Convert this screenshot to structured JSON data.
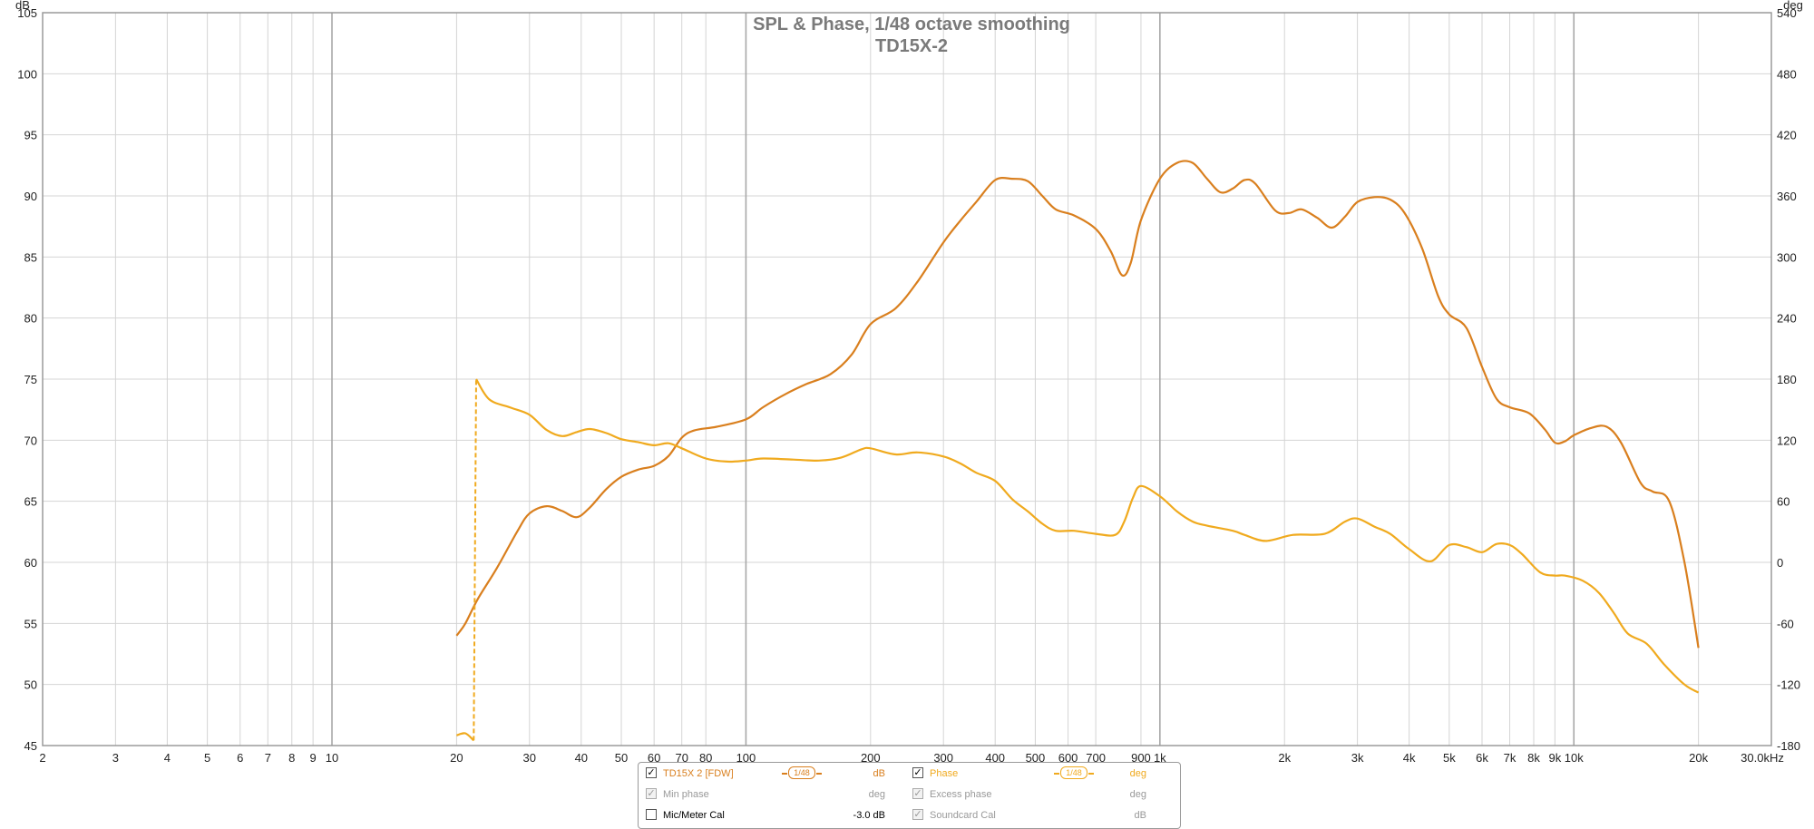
{
  "chart_data": {
    "type": "line",
    "title": "SPL & Phase, 1/48 octave smoothing",
    "subtitle": "TD15X-2",
    "x_scale": "log",
    "xlim": [
      2,
      30000
    ],
    "xunit_label": "30.0kHz",
    "left_axis": {
      "unit": "dB",
      "ylim": [
        45,
        105
      ],
      "ticks": [
        "45",
        "50",
        "55",
        "60",
        "65",
        "70",
        "75",
        "80",
        "85",
        "90",
        "95",
        "100",
        "105"
      ]
    },
    "right_axis": {
      "unit": "deg",
      "ylim": [
        -180,
        540
      ],
      "ticks": [
        "-180",
        "-120",
        "-60",
        "0",
        "60",
        "120",
        "180",
        "240",
        "300",
        "360",
        "420",
        "480",
        "540"
      ]
    },
    "x_ticks": [
      {
        "v": 2,
        "label": "2"
      },
      {
        "v": 3,
        "label": "3"
      },
      {
        "v": 4,
        "label": "4"
      },
      {
        "v": 5,
        "label": "5"
      },
      {
        "v": 6,
        "label": "6"
      },
      {
        "v": 7,
        "label": "7"
      },
      {
        "v": 8,
        "label": "8"
      },
      {
        "v": 9,
        "label": "9"
      },
      {
        "v": 10,
        "label": "10"
      },
      {
        "v": 20,
        "label": "20"
      },
      {
        "v": 30,
        "label": "30"
      },
      {
        "v": 40,
        "label": "40"
      },
      {
        "v": 50,
        "label": "50"
      },
      {
        "v": 60,
        "label": "60"
      },
      {
        "v": 70,
        "label": "70"
      },
      {
        "v": 80,
        "label": "80"
      },
      {
        "v": 100,
        "label": "100"
      },
      {
        "v": 200,
        "label": "200"
      },
      {
        "v": 300,
        "label": "300"
      },
      {
        "v": 400,
        "label": "400"
      },
      {
        "v": 500,
        "label": "500"
      },
      {
        "v": 600,
        "label": "600"
      },
      {
        "v": 700,
        "label": "700"
      },
      {
        "v": 900,
        "label": "900"
      },
      {
        "v": 1000,
        "label": "1k"
      },
      {
        "v": 2000,
        "label": "2k"
      },
      {
        "v": 3000,
        "label": "3k"
      },
      {
        "v": 4000,
        "label": "4k"
      },
      {
        "v": 5000,
        "label": "5k"
      },
      {
        "v": 6000,
        "label": "6k"
      },
      {
        "v": 7000,
        "label": "7k"
      },
      {
        "v": 8000,
        "label": "8k"
      },
      {
        "v": 9000,
        "label": "9k"
      },
      {
        "v": 10000,
        "label": "10k"
      },
      {
        "v": 20000,
        "label": "20k"
      }
    ],
    "grid": true,
    "series": [
      {
        "name": "TD15X 2 [FDW]",
        "axis": "left",
        "unit": "dB",
        "color": "#d97f1e",
        "points": [
          [
            20,
            54
          ],
          [
            21,
            55
          ],
          [
            22.5,
            57
          ],
          [
            25,
            59.5
          ],
          [
            28,
            62.5
          ],
          [
            30,
            64
          ],
          [
            33,
            64.6
          ],
          [
            36,
            64.2
          ],
          [
            39,
            63.7
          ],
          [
            42,
            64.5
          ],
          [
            46,
            66
          ],
          [
            50,
            67
          ],
          [
            55,
            67.6
          ],
          [
            60,
            67.9
          ],
          [
            65,
            68.7
          ],
          [
            70,
            70.2
          ],
          [
            75,
            70.8
          ],
          [
            85,
            71.1
          ],
          [
            100,
            71.7
          ],
          [
            110,
            72.7
          ],
          [
            125,
            73.8
          ],
          [
            140,
            74.6
          ],
          [
            160,
            75.4
          ],
          [
            180,
            77
          ],
          [
            200,
            79.5
          ],
          [
            230,
            80.8
          ],
          [
            260,
            83
          ],
          [
            300,
            86.2
          ],
          [
            330,
            88
          ],
          [
            360,
            89.5
          ],
          [
            400,
            91.3
          ],
          [
            440,
            91.4
          ],
          [
            480,
            91.2
          ],
          [
            520,
            90
          ],
          [
            560,
            88.9
          ],
          [
            620,
            88.4
          ],
          [
            700,
            87.3
          ],
          [
            760,
            85.5
          ],
          [
            810,
            83.5
          ],
          [
            850,
            84.5
          ],
          [
            900,
            88
          ],
          [
            1000,
            91.4
          ],
          [
            1100,
            92.7
          ],
          [
            1200,
            92.7
          ],
          [
            1300,
            91.4
          ],
          [
            1400,
            90.3
          ],
          [
            1500,
            90.6
          ],
          [
            1600,
            91.3
          ],
          [
            1700,
            91
          ],
          [
            1900,
            88.8
          ],
          [
            2050,
            88.6
          ],
          [
            2200,
            88.9
          ],
          [
            2400,
            88.2
          ],
          [
            2600,
            87.4
          ],
          [
            2800,
            88.3
          ],
          [
            3000,
            89.5
          ],
          [
            3300,
            89.9
          ],
          [
            3600,
            89.7
          ],
          [
            3900,
            88.6
          ],
          [
            4300,
            85.7
          ],
          [
            4700,
            81.8
          ],
          [
            5000,
            80.3
          ],
          [
            5500,
            79.2
          ],
          [
            6000,
            76
          ],
          [
            6500,
            73.4
          ],
          [
            7000,
            72.7
          ],
          [
            7800,
            72.2
          ],
          [
            8500,
            70.9
          ],
          [
            9000,
            69.8
          ],
          [
            9500,
            69.9
          ],
          [
            10000,
            70.4
          ],
          [
            11000,
            71
          ],
          [
            12000,
            71.1
          ],
          [
            13000,
            69.8
          ],
          [
            14500,
            66.5
          ],
          [
            15500,
            65.8
          ],
          [
            17000,
            65
          ],
          [
            18500,
            60
          ],
          [
            20000,
            53
          ]
        ]
      },
      {
        "name": "Phase",
        "axis": "right",
        "unit": "deg",
        "color": "#f0aa1e",
        "points": [
          [
            20,
            -170
          ],
          [
            21,
            -168
          ],
          [
            22,
            -175
          ],
          [
            22.3,
            180
          ],
          [
            24,
            160
          ],
          [
            27,
            152
          ],
          [
            30,
            145
          ],
          [
            33,
            130
          ],
          [
            36,
            124
          ],
          [
            39,
            128
          ],
          [
            42,
            131
          ],
          [
            46,
            127
          ],
          [
            50,
            121
          ],
          [
            55,
            118
          ],
          [
            60,
            115
          ],
          [
            65,
            117
          ],
          [
            70,
            112
          ],
          [
            80,
            102
          ],
          [
            90,
            99
          ],
          [
            100,
            100
          ],
          [
            110,
            102
          ],
          [
            130,
            101
          ],
          [
            150,
            100
          ],
          [
            170,
            103
          ],
          [
            190,
            111
          ],
          [
            200,
            112
          ],
          [
            230,
            106
          ],
          [
            260,
            108
          ],
          [
            300,
            104
          ],
          [
            330,
            97
          ],
          [
            360,
            88
          ],
          [
            400,
            80
          ],
          [
            440,
            62
          ],
          [
            480,
            50
          ],
          [
            520,
            38
          ],
          [
            560,
            31
          ],
          [
            620,
            31
          ],
          [
            700,
            28
          ],
          [
            780,
            27
          ],
          [
            820,
            40
          ],
          [
            860,
            63
          ],
          [
            900,
            75
          ],
          [
            1000,
            65
          ],
          [
            1100,
            50
          ],
          [
            1200,
            40
          ],
          [
            1300,
            36
          ],
          [
            1500,
            31
          ],
          [
            1600,
            27
          ],
          [
            1800,
            21
          ],
          [
            2100,
            27
          ],
          [
            2500,
            28
          ],
          [
            2800,
            40
          ],
          [
            3000,
            43
          ],
          [
            3300,
            35
          ],
          [
            3600,
            28
          ],
          [
            4000,
            13
          ],
          [
            4500,
            1
          ],
          [
            5000,
            17
          ],
          [
            5500,
            15
          ],
          [
            6000,
            10
          ],
          [
            6500,
            18
          ],
          [
            7000,
            17
          ],
          [
            7500,
            8
          ],
          [
            8300,
            -10
          ],
          [
            9000,
            -13
          ],
          [
            9500,
            -13
          ],
          [
            10500,
            -18
          ],
          [
            11500,
            -30
          ],
          [
            12500,
            -50
          ],
          [
            13500,
            -70
          ],
          [
            15000,
            -80
          ],
          [
            16500,
            -100
          ],
          [
            18500,
            -120
          ],
          [
            20000,
            -128
          ]
        ]
      }
    ],
    "legend": {
      "rows": [
        [
          {
            "checked": true,
            "enabled": true,
            "name": "TD15X 2 [FDW]",
            "smoothing": "1/48",
            "unit": "dB",
            "color": "#d97f1e"
          },
          {
            "checked": true,
            "enabled": true,
            "name": "Phase",
            "smoothing": "1/48",
            "unit": "deg",
            "color": "#f0aa1e"
          }
        ],
        [
          {
            "checked": true,
            "enabled": false,
            "name": "Min phase",
            "unit": "deg"
          },
          {
            "checked": true,
            "enabled": false,
            "name": "Excess phase",
            "unit": "deg"
          }
        ],
        [
          {
            "checked": false,
            "enabled": true,
            "name": "Mic/Meter Cal",
            "unit": "-3.0 dB"
          },
          {
            "checked": true,
            "enabled": false,
            "name": "Soundcard Cal",
            "unit": "dB"
          }
        ]
      ]
    }
  }
}
